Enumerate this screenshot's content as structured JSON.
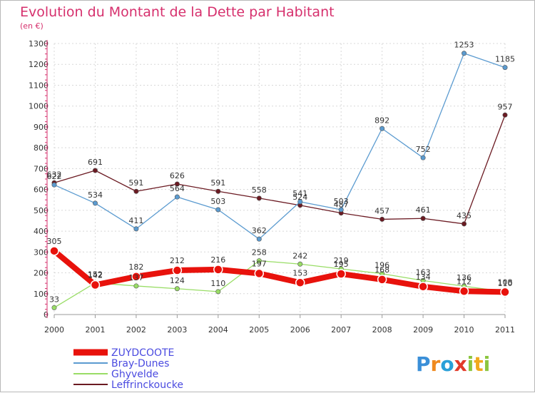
{
  "chart_data": {
    "type": "line",
    "title": "Evolution du Montant de la Dette par Habitant",
    "subtitle": "(en €)",
    "categories": [
      "2000",
      "2001",
      "2002",
      "2003",
      "2004",
      "2005",
      "2006",
      "2007",
      "2008",
      "2009",
      "2010",
      "2011"
    ],
    "ylim": [
      0,
      1300
    ],
    "yticks": [
      0,
      100,
      200,
      300,
      400,
      500,
      600,
      700,
      800,
      900,
      1000,
      1100,
      1200,
      1300
    ],
    "grid": true,
    "legend_position": "bottom-left",
    "series": [
      {
        "name": "ZUYDCOOTE",
        "color": "#e8120c",
        "values": [
          305,
          142,
          182,
          212,
          216,
          197,
          153,
          195,
          168,
          134,
          112,
          108
        ],
        "labels": [
          "305",
          "142",
          "182",
          "212",
          "216",
          "197",
          "153",
          "195",
          "168",
          "134",
          "112",
          "108"
        ]
      },
      {
        "name": "Bray-Dunes",
        "color": "#5b9bd0",
        "values": [
          622,
          534,
          411,
          564,
          503,
          362,
          541,
          503,
          892,
          752,
          1253,
          1185
        ],
        "labels": [
          "622",
          "534",
          "411",
          "564",
          "503",
          "362",
          "541",
          "503",
          "892",
          "752",
          "1253",
          "1185"
        ]
      },
      {
        "name": "Ghyvelde",
        "color": "#99dd66",
        "values": [
          33,
          152,
          137,
          124,
          110,
          258,
          242,
          219,
          196,
          163,
          136,
          110
        ],
        "labels": [
          "33",
          "152",
          "137",
          "124",
          "110",
          "258",
          "242",
          "219",
          "196",
          "163",
          "136",
          "110"
        ]
      },
      {
        "name": "Leffrinckoucke",
        "color": "#6b1a22",
        "values": [
          632,
          691,
          591,
          626,
          591,
          558,
          524,
          487,
          457,
          461,
          435,
          957
        ],
        "labels": [
          "632",
          "691",
          "591",
          "626",
          "591",
          "558",
          "524",
          "487",
          "457",
          "461",
          "435",
          "957"
        ]
      }
    ]
  },
  "brand": {
    "letters": [
      "P",
      "r",
      "o",
      "x",
      "i",
      "t",
      "i"
    ],
    "colors": [
      "#3a8fd8",
      "#ef8a1f",
      "#2aa0d8",
      "#e23a2a",
      "#8cc63f",
      "#f1a91d",
      "#8cc63f"
    ]
  }
}
